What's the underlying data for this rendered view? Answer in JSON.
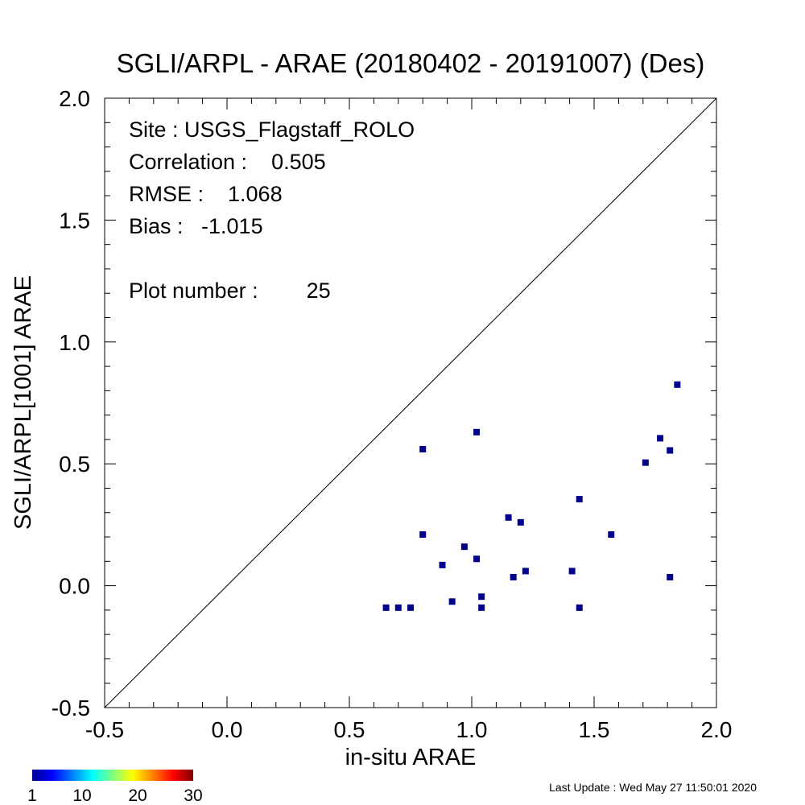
{
  "chart_data": {
    "type": "scatter",
    "title": "SGLI/ARPL - ARAE (20180402 - 20191007) (Des)",
    "xlabel": "in-situ ARAE",
    "ylabel": "SGLI/ARPL[1001]    ARAE",
    "xlim": [
      -0.5,
      2.0
    ],
    "ylim": [
      -0.5,
      2.0
    ],
    "x_ticks": [
      "-0.5",
      "0.0",
      "0.5",
      "1.0",
      "1.5",
      "2.0"
    ],
    "y_ticks": [
      "-0.5",
      "0.0",
      "0.5",
      "1.0",
      "1.5",
      "2.0"
    ],
    "one_to_one_line": true,
    "grid": false,
    "marker_color": "#00008b",
    "points": [
      {
        "x": 0.65,
        "y": -0.09
      },
      {
        "x": 0.7,
        "y": -0.09
      },
      {
        "x": 0.75,
        "y": -0.09
      },
      {
        "x": 0.8,
        "y": 0.56
      },
      {
        "x": 0.8,
        "y": 0.21
      },
      {
        "x": 0.88,
        "y": 0.085
      },
      {
        "x": 0.92,
        "y": -0.065
      },
      {
        "x": 0.97,
        "y": 0.16
      },
      {
        "x": 1.02,
        "y": 0.63
      },
      {
        "x": 1.02,
        "y": 0.11
      },
      {
        "x": 1.04,
        "y": -0.045
      },
      {
        "x": 1.04,
        "y": -0.09
      },
      {
        "x": 1.15,
        "y": 0.28
      },
      {
        "x": 1.17,
        "y": 0.035
      },
      {
        "x": 1.2,
        "y": 0.26
      },
      {
        "x": 1.22,
        "y": 0.06
      },
      {
        "x": 1.41,
        "y": 0.06
      },
      {
        "x": 1.44,
        "y": 0.355
      },
      {
        "x": 1.44,
        "y": -0.09
      },
      {
        "x": 1.57,
        "y": 0.21
      },
      {
        "x": 1.71,
        "y": 0.505
      },
      {
        "x": 1.77,
        "y": 0.605
      },
      {
        "x": 1.81,
        "y": 0.555
      },
      {
        "x": 1.81,
        "y": 0.035
      },
      {
        "x": 1.84,
        "y": 0.825
      }
    ]
  },
  "stats": {
    "site": "Site : USGS_Flagstaff_ROLO",
    "correlation": "Correlation :    0.505",
    "rmse": "RMSE :    1.068",
    "bias": "Bias :   -1.015",
    "plot_number": "Plot number :        25"
  },
  "colorbar": {
    "ticks": [
      "1",
      "10",
      "20",
      "30"
    ],
    "range": [
      1,
      30
    ],
    "colors": [
      "#00008f",
      "#0000ff",
      "#0080ff",
      "#00ffff",
      "#80ff80",
      "#ffff00",
      "#ff8000",
      "#ff0000",
      "#800000"
    ]
  },
  "footer": {
    "last_update": "Last Update : Wed May 27 11:50:01 2020"
  }
}
